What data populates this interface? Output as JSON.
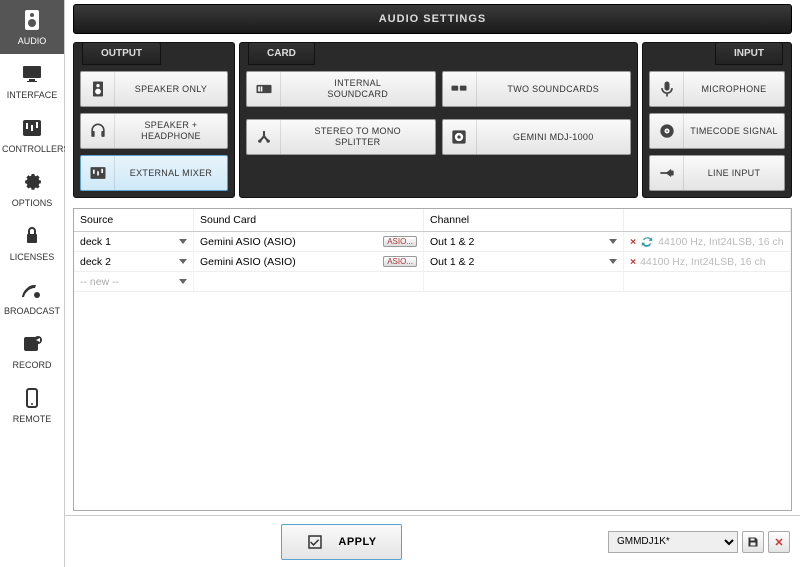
{
  "title": "AUDIO SETTINGS",
  "nav": [
    {
      "id": "audio",
      "label": "AUDIO",
      "active": true
    },
    {
      "id": "interface",
      "label": "INTERFACE"
    },
    {
      "id": "controllers",
      "label": "CONTROLLERS"
    },
    {
      "id": "options",
      "label": "OPTIONS"
    },
    {
      "id": "licenses",
      "label": "LICENSES"
    },
    {
      "id": "broadcast",
      "label": "BROADCAST"
    },
    {
      "id": "record",
      "label": "RECORD"
    },
    {
      "id": "remote",
      "label": "REMOTE"
    }
  ],
  "groups": {
    "output": {
      "tab": "OUTPUT",
      "items": [
        {
          "id": "speaker-only",
          "label": "SPEAKER ONLY"
        },
        {
          "id": "speaker-headphone",
          "label": "SPEAKER + HEADPHONE"
        },
        {
          "id": "external-mixer",
          "label": "EXTERNAL MIXER",
          "selected": true
        }
      ]
    },
    "card": {
      "tab": "CARD",
      "rows": [
        [
          {
            "id": "internal-soundcard",
            "label": "INTERNAL SOUNDCARD"
          },
          {
            "id": "two-soundcards",
            "label": "TWO SOUNDCARDS"
          }
        ],
        [
          {
            "id": "stereo-mono-splitter",
            "label": "STEREO TO MONO SPLITTER"
          },
          {
            "id": "gemini-mdj1000",
            "label": "GEMINI MDJ-1000"
          }
        ]
      ]
    },
    "input": {
      "tab": "INPUT",
      "items": [
        {
          "id": "microphone",
          "label": "MICROPHONE"
        },
        {
          "id": "timecode-signal",
          "label": "TIMECODE SIGNAL"
        },
        {
          "id": "line-input",
          "label": "LINE INPUT"
        }
      ]
    }
  },
  "table": {
    "headers": {
      "source": "Source",
      "card": "Sound Card",
      "channel": "Channel"
    },
    "rows": [
      {
        "source": "deck 1",
        "card": "Gemini ASIO (ASIO)",
        "asio": "ASIO...",
        "channel": "Out 1 & 2",
        "info": "44100 Hz, Int24LSB, 16 ch"
      },
      {
        "source": "deck 2",
        "card": "Gemini ASIO (ASIO)",
        "asio": "ASIO...",
        "channel": "Out 1 & 2",
        "info": "44100 Hz, Int24LSB, 16 ch"
      }
    ],
    "new_label": "-- new --"
  },
  "footer": {
    "apply_label": "APPLY",
    "profile": "GMMDJ1K*"
  }
}
